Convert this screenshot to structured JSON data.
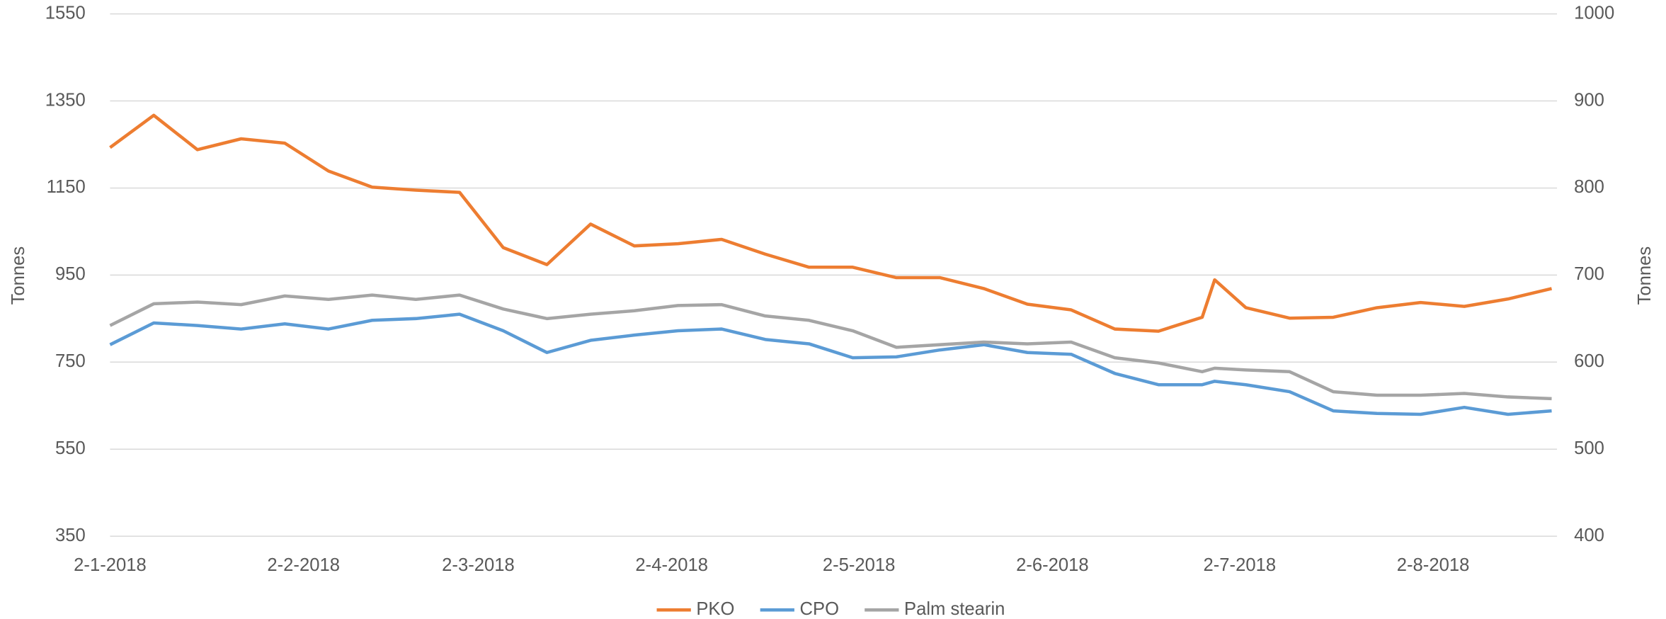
{
  "chart_data": {
    "type": "line",
    "y_label": "Tonnes",
    "y2_label": "Tonnes",
    "x": [
      "2-1-2018",
      "9-1-2018",
      "16-1-2018",
      "23-1-2018",
      "30-1-2018",
      "6-2-2018",
      "13-2-2018",
      "20-2-2018",
      "27-2-2018",
      "6-3-2018",
      "13-3-2018",
      "20-3-2018",
      "27-3-2018",
      "3-4-2018",
      "10-4-2018",
      "17-4-2018",
      "24-4-2018",
      "1-5-2018",
      "8-5-2018",
      "15-5-2018",
      "22-5-2018",
      "29-5-2018",
      "5-6-2018",
      "12-6-2018",
      "19-6-2018",
      "26-6-2018",
      "28-6-2018",
      "3-7-2018",
      "10-7-2018",
      "17-7-2018",
      "24-7-2018",
      "31-7-2018",
      "7-8-2018",
      "14-8-2018",
      "21-8-2018"
    ],
    "series": [
      {
        "name": "PKO",
        "color": "#ed7d31",
        "axis": "y",
        "values": [
          1243,
          1317,
          1238,
          1263,
          1253,
          1189,
          1152,
          1145,
          1140,
          1013,
          974,
          1067,
          1017,
          1022,
          1032,
          998,
          968,
          968,
          944,
          944,
          919,
          883,
          870,
          826,
          821,
          853,
          939,
          875,
          851,
          853,
          875,
          887,
          878,
          895,
          919
        ]
      },
      {
        "name": "CPO",
        "color": "#5b9bd5",
        "axis": "y2",
        "values": [
          620,
          645,
          642,
          638,
          644,
          638,
          648,
          650,
          655,
          636,
          611,
          625,
          631,
          636,
          638,
          626,
          621,
          605,
          606,
          614,
          620,
          611,
          609,
          587,
          574,
          574,
          578,
          574,
          566,
          544,
          541,
          540,
          548,
          540,
          544
        ]
      },
      {
        "name": "Palm stearin",
        "color": "#a5a5a5",
        "axis": "y2",
        "values": [
          642,
          667,
          669,
          666,
          676,
          672,
          677,
          672,
          677,
          661,
          650,
          655,
          659,
          665,
          666,
          653,
          648,
          636,
          617,
          620,
          623,
          621,
          623,
          605,
          599,
          589,
          593,
          591,
          589,
          566,
          562,
          562,
          564,
          560,
          558
        ]
      }
    ],
    "xlim": [
      "2-1-2018",
      "21-8-2018"
    ],
    "xticks": [
      "2-1-2018",
      "2-2-2018",
      "2-3-2018",
      "2-4-2018",
      "2-5-2018",
      "2-6-2018",
      "2-7-2018",
      "2-8-2018"
    ],
    "ylim": [
      350,
      1550
    ],
    "yticks": [
      350,
      550,
      750,
      950,
      1150,
      1350,
      1550
    ],
    "y2lim": [
      400,
      1000
    ],
    "y2ticks": [
      400,
      500,
      600,
      700,
      800,
      900,
      1000
    ],
    "grid": true,
    "legend": "bottom"
  }
}
